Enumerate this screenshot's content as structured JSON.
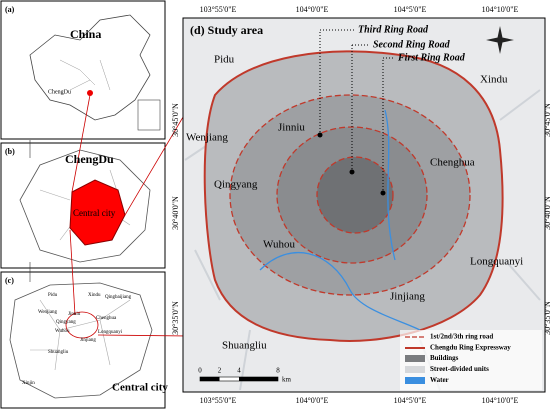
{
  "panels": {
    "a": {
      "tag": "(a)",
      "country": "China",
      "city": "ChengDu"
    },
    "b": {
      "tag": "(b)",
      "title": "ChengDu",
      "region": "Central city"
    },
    "c": {
      "tag": "(c)",
      "title": "Central city",
      "districts": [
        "Pidu",
        "Xindu",
        "Qingbaijiang",
        "Wenjiang",
        "Jinniu",
        "Chenghua",
        "Qingyang",
        "Wuhou",
        "Longquanyi",
        "Jinjiang",
        "Shuangliu",
        "Xinjin"
      ]
    },
    "d": {
      "tag": "(d) Study area",
      "rings": [
        "Third Ring Road",
        "Second Ring Road",
        "First Ring Road"
      ],
      "districts": [
        "Pidu",
        "Xindu",
        "Wenjiang",
        "Jinniu",
        "Chenghua",
        "Qingyang",
        "Wuhou",
        "Longquanyi",
        "Jinjiang",
        "Shuangliu"
      ],
      "longitudes": [
        "103°55'0\"E",
        "104°0'0\"E",
        "104°5'0\"E",
        "104°10'0\"E"
      ],
      "latitudes": [
        "30°45'0\"N",
        "30°40'0\"N",
        "30°35'0\"N"
      ],
      "legend": [
        "1st/2nd/3th ring road",
        "Chengdu Ring Expressway",
        "Buildings",
        "Street-divided units",
        "Water"
      ],
      "scale": {
        "ticks": [
          0,
          2,
          4,
          8
        ],
        "unit": "km"
      }
    }
  }
}
